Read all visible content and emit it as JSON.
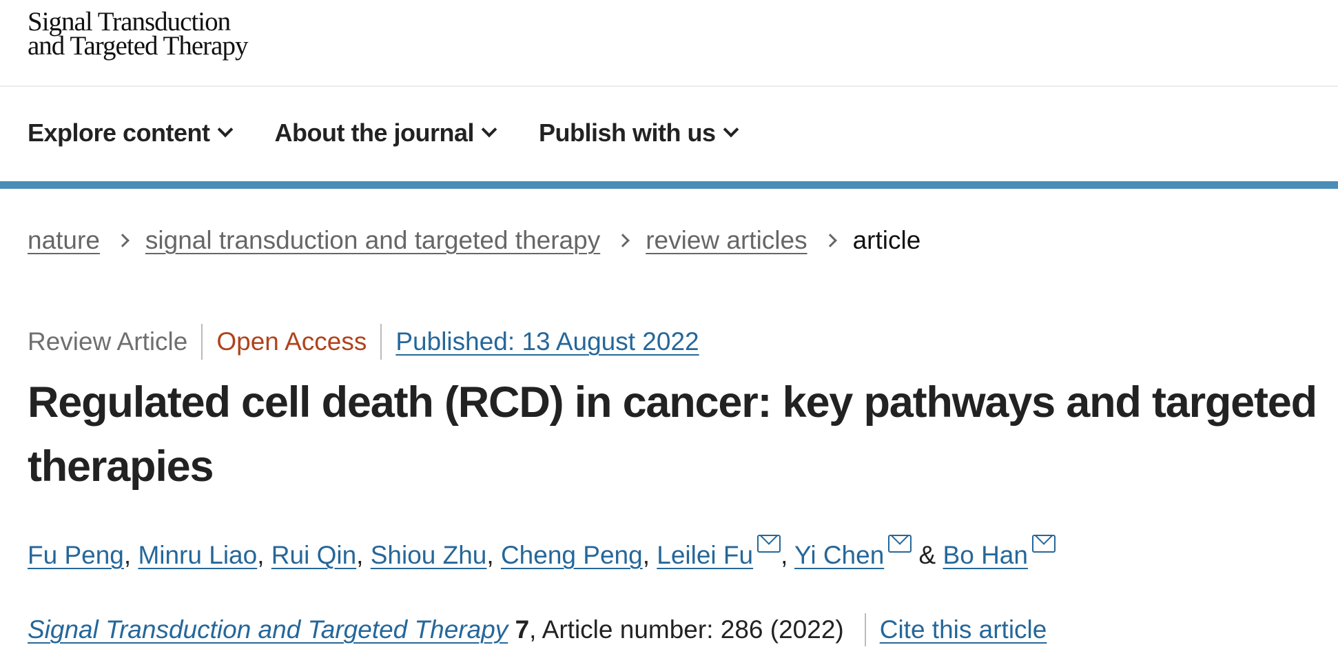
{
  "logo": {
    "line1": "Signal Transduction",
    "line2": "and Targeted Therapy"
  },
  "nav": [
    {
      "label": "Explore content"
    },
    {
      "label": "About the journal"
    },
    {
      "label": "Publish with us"
    }
  ],
  "accent_color": "#4a8db7",
  "breadcrumb": [
    {
      "label": "nature"
    },
    {
      "label": "signal transduction and targeted therapy"
    },
    {
      "label": "review articles"
    },
    {
      "label": "article"
    }
  ],
  "meta": {
    "type": "Review Article",
    "access": "Open Access",
    "published": "Published: 13 August 2022"
  },
  "title": "Regulated cell death (RCD) in cancer: key pathways and targeted therapies",
  "authors": [
    {
      "name": "Fu Peng",
      "sep": ", "
    },
    {
      "name": "Minru Liao",
      "sep": ", "
    },
    {
      "name": "Rui Qin",
      "sep": ", "
    },
    {
      "name": "Shiou Zhu",
      "sep": ", "
    },
    {
      "name": "Cheng Peng",
      "sep": ", "
    },
    {
      "name": "Leilei Fu",
      "sep": ", "
    },
    {
      "name": "Yi Chen",
      "sep": " & "
    },
    {
      "name": "Bo Han",
      "sep": ""
    }
  ],
  "citation": {
    "journal": "Signal Transduction and Targeted Therapy",
    "volume": "7",
    "rest": ", Article number: 286 (2022)",
    "cite_link": "Cite this article"
  }
}
